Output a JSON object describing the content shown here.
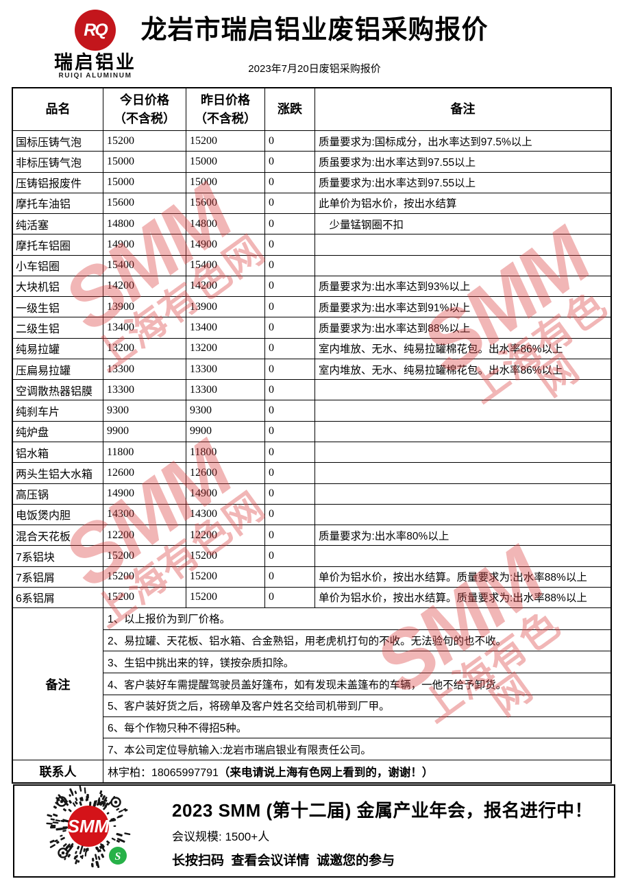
{
  "header": {
    "logo": {
      "monogram": "RQ",
      "name_cn": "瑞启铝业",
      "name_en": "RUIQI ALUMINUM"
    },
    "title": "龙岩市瑞启铝业废铝采购报价",
    "subtitle": "2023年7月20日废铝采购报价"
  },
  "table": {
    "columns": [
      "品名",
      "今日价格\n（不含税）",
      "昨日价格\n（不含税）",
      "涨跌",
      "备注"
    ],
    "rows": [
      [
        "国标压铸气泡",
        "15200",
        "15200",
        "0",
        "质量要求为:国标成分，出水率达到97.5%以上"
      ],
      [
        "非标压铸气泡",
        "15000",
        "15000",
        "0",
        "质虽要求为:出水率达到97.55以上"
      ],
      [
        "压铸铝报废件",
        "15000",
        "15000",
        "0",
        "质量要求为:出水率达到97.55以上"
      ],
      [
        "摩托车油铝",
        "15600",
        "15600",
        "0",
        "此单价为铝水价，按出水结算"
      ],
      [
        "纯活塞",
        "14800",
        "14800",
        "0",
        "　少量锰钢圈不扣"
      ],
      [
        "摩托车铝圈",
        "14900",
        "14900",
        "0",
        ""
      ],
      [
        "小车铝圈",
        "15400",
        "15400",
        "0",
        ""
      ],
      [
        "大块机铝",
        "14200",
        "14200",
        "0",
        "质量要求为:出水率达到93%以上"
      ],
      [
        "一级生铝",
        "13900",
        "13900",
        "0",
        "质量要求为:出水率达到91%以上"
      ],
      [
        "二级生铝",
        "13400",
        "13400",
        "0",
        "质量要求为:出水率达到88%以上"
      ],
      [
        "纯易拉罐",
        "13200",
        "13200",
        "0",
        "室内堆放、无水、纯易拉罐棉花包。出水率86%以上"
      ],
      [
        "压扁易拉罐",
        "13300",
        "13300",
        "0",
        "室内堆放、无水、纯易拉罐棉花包。出水率86%以上"
      ],
      [
        "空调散热器铝膜",
        "13300",
        "13300",
        "0",
        ""
      ],
      [
        "纯刹车片",
        "9300",
        "9300",
        "0",
        ""
      ],
      [
        "纯炉盘",
        "9900",
        "9900",
        "0",
        ""
      ],
      [
        "铝水箱",
        "11800",
        "11800",
        "0",
        ""
      ],
      [
        "两头生铝大水箱",
        "12600",
        "12600",
        "0",
        ""
      ],
      [
        "高压锅",
        "14900",
        "14900",
        "0",
        ""
      ],
      [
        "电饭煲内胆",
        "14300",
        "14300",
        "0",
        ""
      ],
      [
        "混合天花板",
        "12200",
        "12200",
        "0",
        "质量要求为:出水率80%以上"
      ],
      [
        "7系铝块",
        "15200",
        "15200",
        "0",
        ""
      ],
      [
        "7系铝屑",
        "15200",
        "15200",
        "0",
        "单价为铝水价，按出水结算。质量要求为:出水率88%以上"
      ],
      [
        "6系铝屑",
        "15200",
        "15200",
        "0",
        "单价为铝水价，按出水结算。质量要求为:出水率88%以上"
      ]
    ]
  },
  "notes": {
    "label": "备注",
    "items": [
      "1、以上报价为到厂价格。",
      "2、易拉罐、天花板、铝水箱、合金熟铝，用老虎机打句的不收。无法验句的也不收。",
      "3、生铝中挑出来的锌，镁按杂质扣除。",
      "4、客户装好车需提醒驾驶员盖好篷布，如有发现未盖篷布的车辆，一他不给予卸货。",
      "5、客户装好货之后，将磅单及客户姓名交给司机带到厂甲。",
      "6、每个作物只种不得招5种。",
      "7、本公司定位导航输入:龙岩市瑞启银业有限责任公司。"
    ]
  },
  "contact": {
    "label": "联系人",
    "name_phone": "林宇柏：18065997791",
    "note": "（来电请说上海有色网上看到的，谢谢！）"
  },
  "footer": {
    "qr_center_label": "SMM",
    "title": "2023 SMM (第十二届) 金属产业年会，报名进行中！",
    "scale": "会议规模: 1500+人",
    "cta": "长按扫码  查看会议详情  诚邀您的参与"
  },
  "watermark": {
    "line1": "SMM",
    "line2": "上海有色网"
  },
  "colors": {
    "logo_red": "#c3161c",
    "qr_red": "#d41319",
    "wechat_green": "#27b148",
    "watermark_red": "rgba(217,62,62,0.38)"
  }
}
